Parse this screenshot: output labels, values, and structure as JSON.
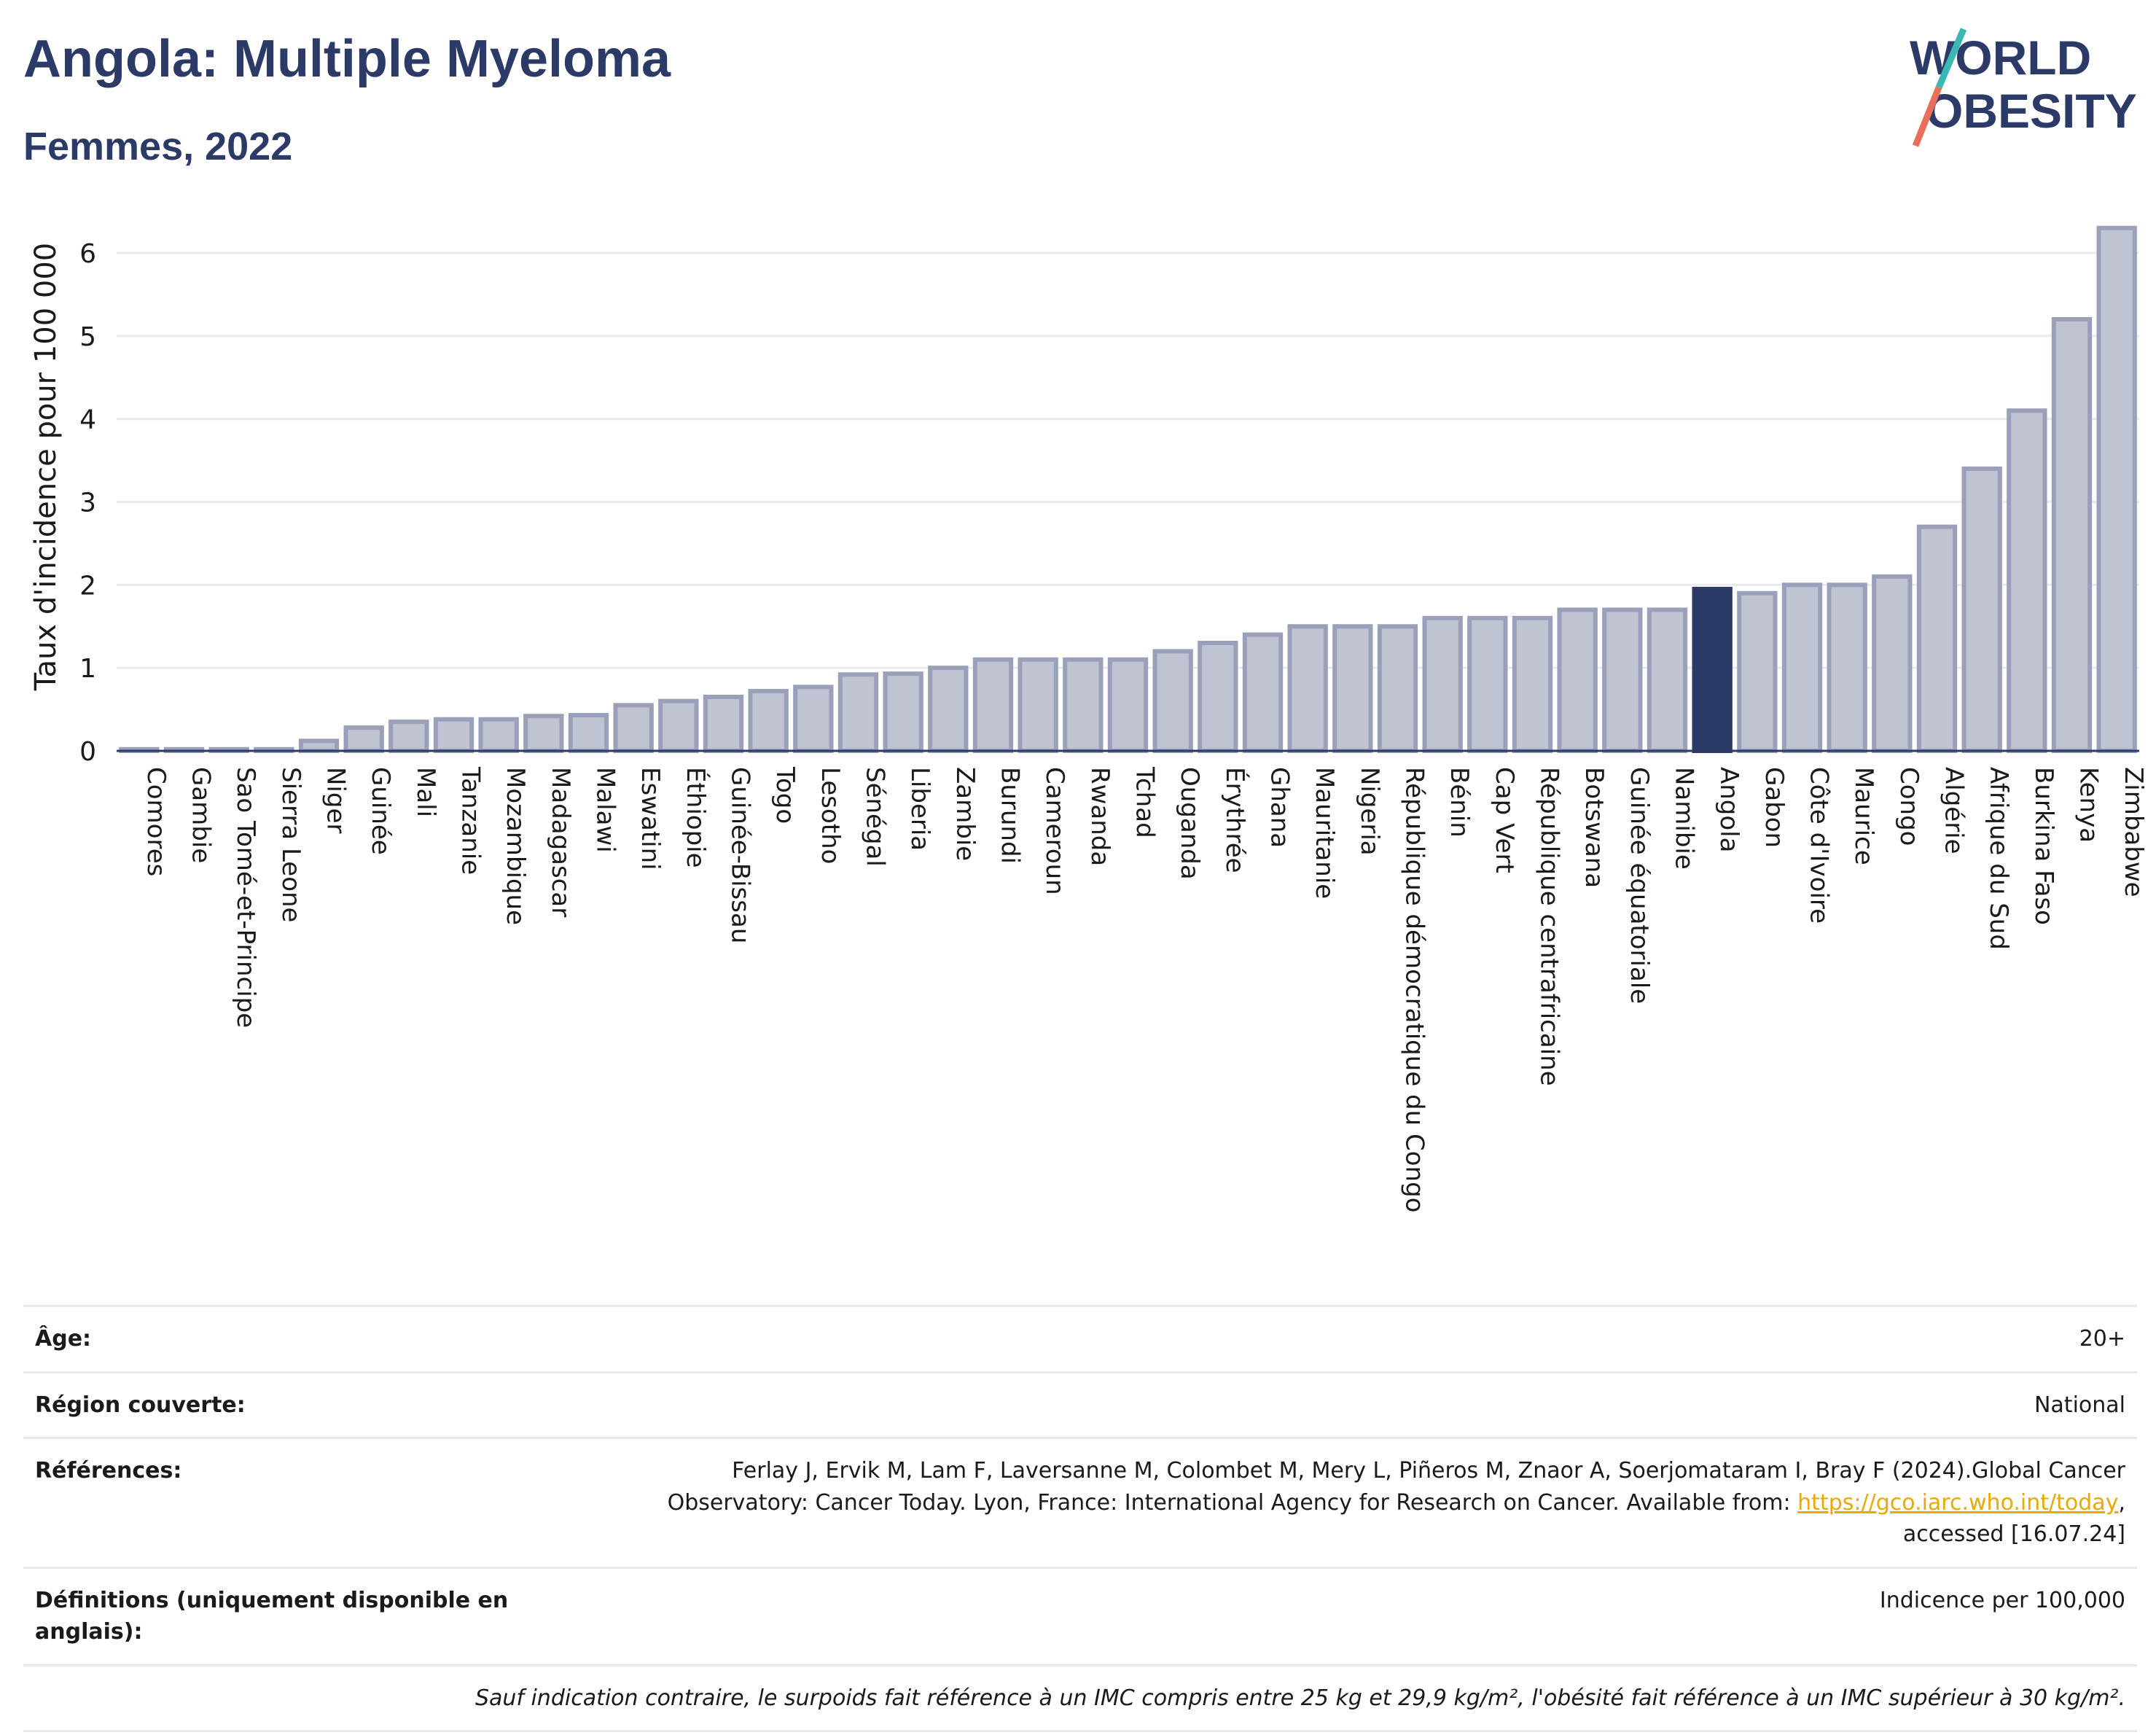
{
  "header": {
    "title": "Angola: Multiple Myeloma",
    "subtitle": "Femmes, 2022"
  },
  "logo": {
    "line1": "WORLD",
    "line2": "OBESITY"
  },
  "colors": {
    "bar": "#bfc3d2",
    "bar_border": "#9aa0b9",
    "highlight": "#2b3a67",
    "title": "#2b3a67",
    "grid": "#e8eaf0",
    "link": "#e8a900"
  },
  "chart_data": {
    "type": "bar",
    "ylabel": "Taux d'incidence pour 100 000",
    "ylim": [
      0,
      6.5
    ],
    "yticks": [
      0,
      1,
      2,
      3,
      4,
      5,
      6
    ],
    "grid": true,
    "highlight": "Angola",
    "categories": [
      "Comores",
      "Gambie",
      "Sao Tomé-et-Principe",
      "Sierra Leone",
      "Niger",
      "Guinée",
      "Mali",
      "Tanzanie",
      "Mozambique",
      "Madagascar",
      "Malawi",
      "Eswatini",
      "Éthiopie",
      "Guinée-Bissau",
      "Togo",
      "Lesotho",
      "Sénégal",
      "Liberia",
      "Zambie",
      "Burundi",
      "Cameroun",
      "Rwanda",
      "Tchad",
      "Ouganda",
      "Érythrée",
      "Ghana",
      "Mauritanie",
      "Nigeria",
      "République démocratique du Congo",
      "Bénin",
      "Cap Vert",
      "République centrafricaine",
      "Botswana",
      "Guinée équatoriale",
      "Namibie",
      "Angola",
      "Gabon",
      "Côte d'Ivoire",
      "Maurice",
      "Congo",
      "Algérie",
      "Afrique du Sud",
      "Burkina Faso",
      "Kenya",
      "Zimbabwe"
    ],
    "values": [
      0.02,
      0.02,
      0.02,
      0.02,
      0.12,
      0.28,
      0.35,
      0.38,
      0.38,
      0.42,
      0.43,
      0.55,
      0.6,
      0.65,
      0.72,
      0.77,
      0.92,
      0.93,
      1.0,
      1.1,
      1.1,
      1.1,
      1.1,
      1.2,
      1.3,
      1.4,
      1.5,
      1.5,
      1.5,
      1.6,
      1.6,
      1.6,
      1.7,
      1.7,
      1.7,
      1.95,
      1.9,
      2.0,
      2.0,
      2.1,
      2.7,
      3.4,
      4.1,
      5.2,
      6.3
    ]
  },
  "info": {
    "age_label": "Âge:",
    "age_value": "20+",
    "region_label": "Région couverte:",
    "region_value": "National",
    "refs_label": "Références:",
    "refs_text_1": "Ferlay J, Ervik M, Lam F, Laversanne M, Colombet M, Mery L, Piñeros M, Znaor A, Soerjomataram I, Bray F (2024).Global Cancer",
    "refs_text_2": "Observatory: Cancer Today. Lyon, France: International Agency for Research on Cancer. Available from: ",
    "refs_link": "https://gco.iarc.who.int/today",
    "refs_text_3": ",",
    "refs_text_4": "accessed [16.07.24]",
    "defs_label": "Définitions (uniquement disponible en anglais):",
    "defs_value": "Indicence per 100,000",
    "footnote": "Sauf indication contraire, le surpoids fait référence à un IMC compris entre 25 kg et 29,9 kg/m², l'obésité fait référence à un IMC supérieur à 30 kg/m²."
  }
}
